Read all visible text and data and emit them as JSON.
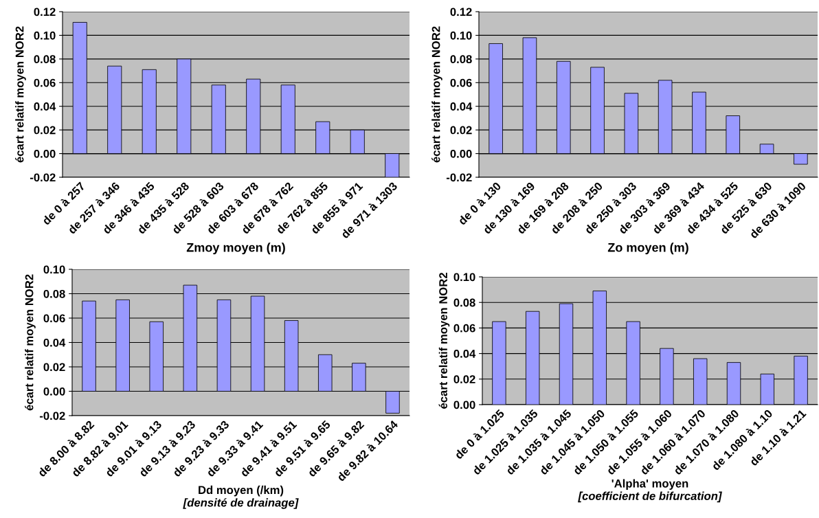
{
  "chart_data": [
    {
      "type": "bar",
      "xlabel": "Zmoy moyen (m)",
      "ylabel": "écart relatif moyen NOR2",
      "categories": [
        "de 0 à 257",
        "de 257 à 346",
        "de 346 à 435",
        "de 435 à 528",
        "de 528 à 603",
        "de 603 à 678",
        "de 678 à 762",
        "de 762 à 855",
        "de 855 à 971",
        "de 971 à 1303"
      ],
      "values": [
        0.111,
        0.074,
        0.071,
        0.08,
        0.058,
        0.063,
        0.058,
        0.027,
        0.02,
        -0.02
      ],
      "color": "#9999ff",
      "ylim": [
        -0.02,
        0.12
      ],
      "yticks": [
        {
          "value": -0.02,
          "label": "-0.02"
        },
        {
          "value": 0,
          "label": "0.00"
        },
        {
          "value": 0.02,
          "label": "0.02"
        },
        {
          "value": 0.04,
          "label": "0.04"
        },
        {
          "value": 0.06,
          "label": "0.06"
        },
        {
          "value": 0.08,
          "label": "0.08"
        },
        {
          "value": 0.1,
          "label": "0.10"
        },
        {
          "value": 0.12,
          "label": "0.12"
        }
      ],
      "grid": "y"
    },
    {
      "type": "bar",
      "xlabel": "Zo moyen (m)",
      "ylabel": "écart relatif moyen NOR2",
      "categories": [
        "de 0 à 130",
        "de 130 à 169",
        "de 169 à 208",
        "de 208 à 250",
        "de 250 à 303",
        "de 303 à 369",
        "de 369 à 434",
        "de 434 à 525",
        "de 525 à 630",
        "de 630 à 1090"
      ],
      "values": [
        0.093,
        0.098,
        0.078,
        0.073,
        0.051,
        0.062,
        0.052,
        0.032,
        0.008,
        -0.009
      ],
      "color": "#9999ff",
      "ylim": [
        -0.02,
        0.12
      ],
      "yticks": [
        {
          "value": -0.02,
          "label": "-0.02"
        },
        {
          "value": 0,
          "label": "0.00"
        },
        {
          "value": 0.02,
          "label": "0.02"
        },
        {
          "value": 0.04,
          "label": "0.04"
        },
        {
          "value": 0.06,
          "label": "0.06"
        },
        {
          "value": 0.08,
          "label": "0.08"
        },
        {
          "value": 0.1,
          "label": "0.10"
        },
        {
          "value": 0.12,
          "label": "0.12"
        }
      ],
      "grid": "y"
    },
    {
      "type": "bar",
      "xlabel": "Dd moyen (/km)\n[densité de drainage]",
      "ylabel": "écart relatif moyen NOR2",
      "categories": [
        "de 8.00 à 8.82",
        "de 8.82 à 9.01",
        "de 9.01 à 9.13",
        "de 9.13 à 9.23",
        "de 9.23 à 9.33",
        "de 9.33 à 9.41",
        "de 9.41 à 9.51",
        "de 9.51 à 9.65",
        "de 9.65 à 9.82",
        "de 9.82 à 10.64"
      ],
      "values": [
        0.074,
        0.075,
        0.057,
        0.087,
        0.075,
        0.078,
        0.058,
        0.03,
        0.023,
        -0.018
      ],
      "color": "#9999ff",
      "ylim": [
        -0.02,
        0.1
      ],
      "yticks": [
        {
          "value": -0.02,
          "label": "-0.02"
        },
        {
          "value": 0,
          "label": "0.00"
        },
        {
          "value": 0.02,
          "label": "0.02"
        },
        {
          "value": 0.04,
          "label": "0.04"
        },
        {
          "value": 0.06,
          "label": "0.06"
        },
        {
          "value": 0.08,
          "label": "0.08"
        },
        {
          "value": 0.1,
          "label": "0.10"
        }
      ],
      "grid": "y"
    },
    {
      "type": "bar",
      "xlabel": "'Alpha' moyen\n[coefficient de bifurcation]",
      "ylabel": "écart relatif moyen NOR2",
      "categories": [
        "de 0 à 1.025",
        "de 1.025 à 1.035",
        "de 1.035 à 1.045",
        "de 1.045 à 1.050",
        "de 1.050 à 1.055",
        "de 1.055 à 1.060",
        "de 1.060 à 1.070",
        "de 1.070 à 1.080",
        "de 1.080 à 1.10",
        "de 1.10 à 1.21"
      ],
      "values": [
        0.065,
        0.073,
        0.079,
        0.089,
        0.065,
        0.044,
        0.036,
        0.033,
        0.024,
        0.038
      ],
      "color": "#9999ff",
      "ylim": [
        0,
        0.1
      ],
      "yticks": [
        {
          "value": 0,
          "label": "0.00"
        },
        {
          "value": 0.02,
          "label": "0.02"
        },
        {
          "value": 0.04,
          "label": "0.04"
        },
        {
          "value": 0.06,
          "label": "0.06"
        },
        {
          "value": 0.08,
          "label": "0.08"
        },
        {
          "value": 0.1,
          "label": "0.10"
        }
      ],
      "grid": "y"
    }
  ]
}
